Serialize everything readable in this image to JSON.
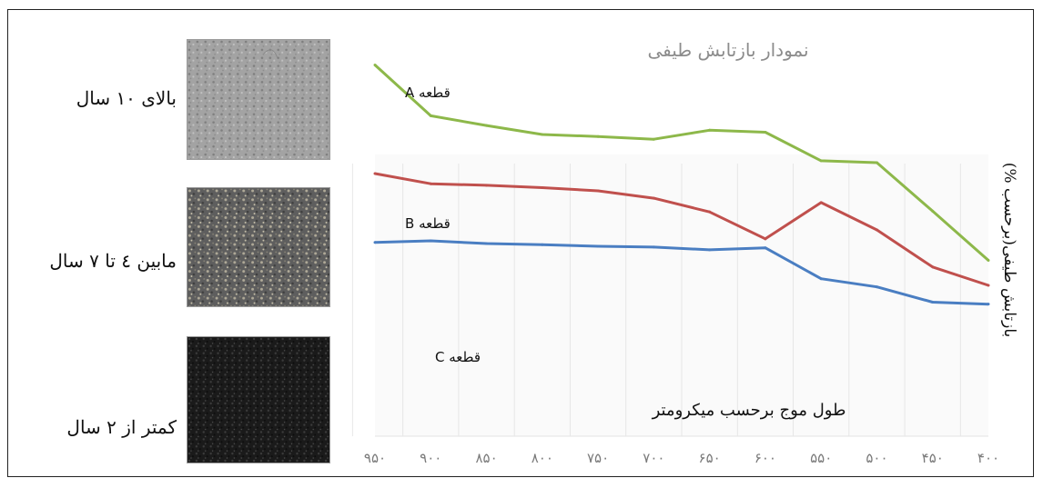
{
  "samples": [
    {
      "label": "بالای ۱۰ سال",
      "texture": "light-grey-asphalt"
    },
    {
      "label": "مابین ٤ تا ۷ سال",
      "texture": "medium-grey-asphalt"
    },
    {
      "label": "کمتر از ۲ سال",
      "texture": "dark-black-asphalt"
    }
  ],
  "chart_data": {
    "type": "line",
    "title": "نمودار بازتابش طیفی",
    "xlabel": "طول موج برحسب میکرومتر",
    "ylabel": "بازتابش طیفی(برحسب %)",
    "categories": [
      "۹۵۰",
      "۹۰۰",
      "۸۵۰",
      "۸۰۰",
      "۷۵۰",
      "۷۰۰",
      "۶۵۰",
      "۶۰۰",
      "۵۵۰",
      "۵۰۰",
      "۴۵۰",
      "۴۰۰"
    ],
    "series": [
      {
        "name": "قطعه A",
        "color": "#8db84a",
        "values": [
          95,
          82,
          79.5,
          77.2,
          76.7,
          76,
          78.3,
          77.8,
          70.5,
          70,
          57.6,
          45
        ]
      },
      {
        "name": "قطعه B",
        "color": "#c0504d",
        "values": [
          67.2,
          64.6,
          64.2,
          63.6,
          62.8,
          60.9,
          57.4,
          50.5,
          59.8,
          52.8,
          43.3,
          38.6
        ]
      },
      {
        "name": "قطعه C",
        "color": "#4a7ec2",
        "values": [
          49.6,
          50,
          49.3,
          49,
          48.6,
          48.4,
          47.7,
          48.2,
          40.3,
          38.2,
          34.3,
          33.8
        ]
      }
    ],
    "ylim": [
      0,
      100
    ],
    "grid": "vertical",
    "legend": "labels-on-lines"
  }
}
